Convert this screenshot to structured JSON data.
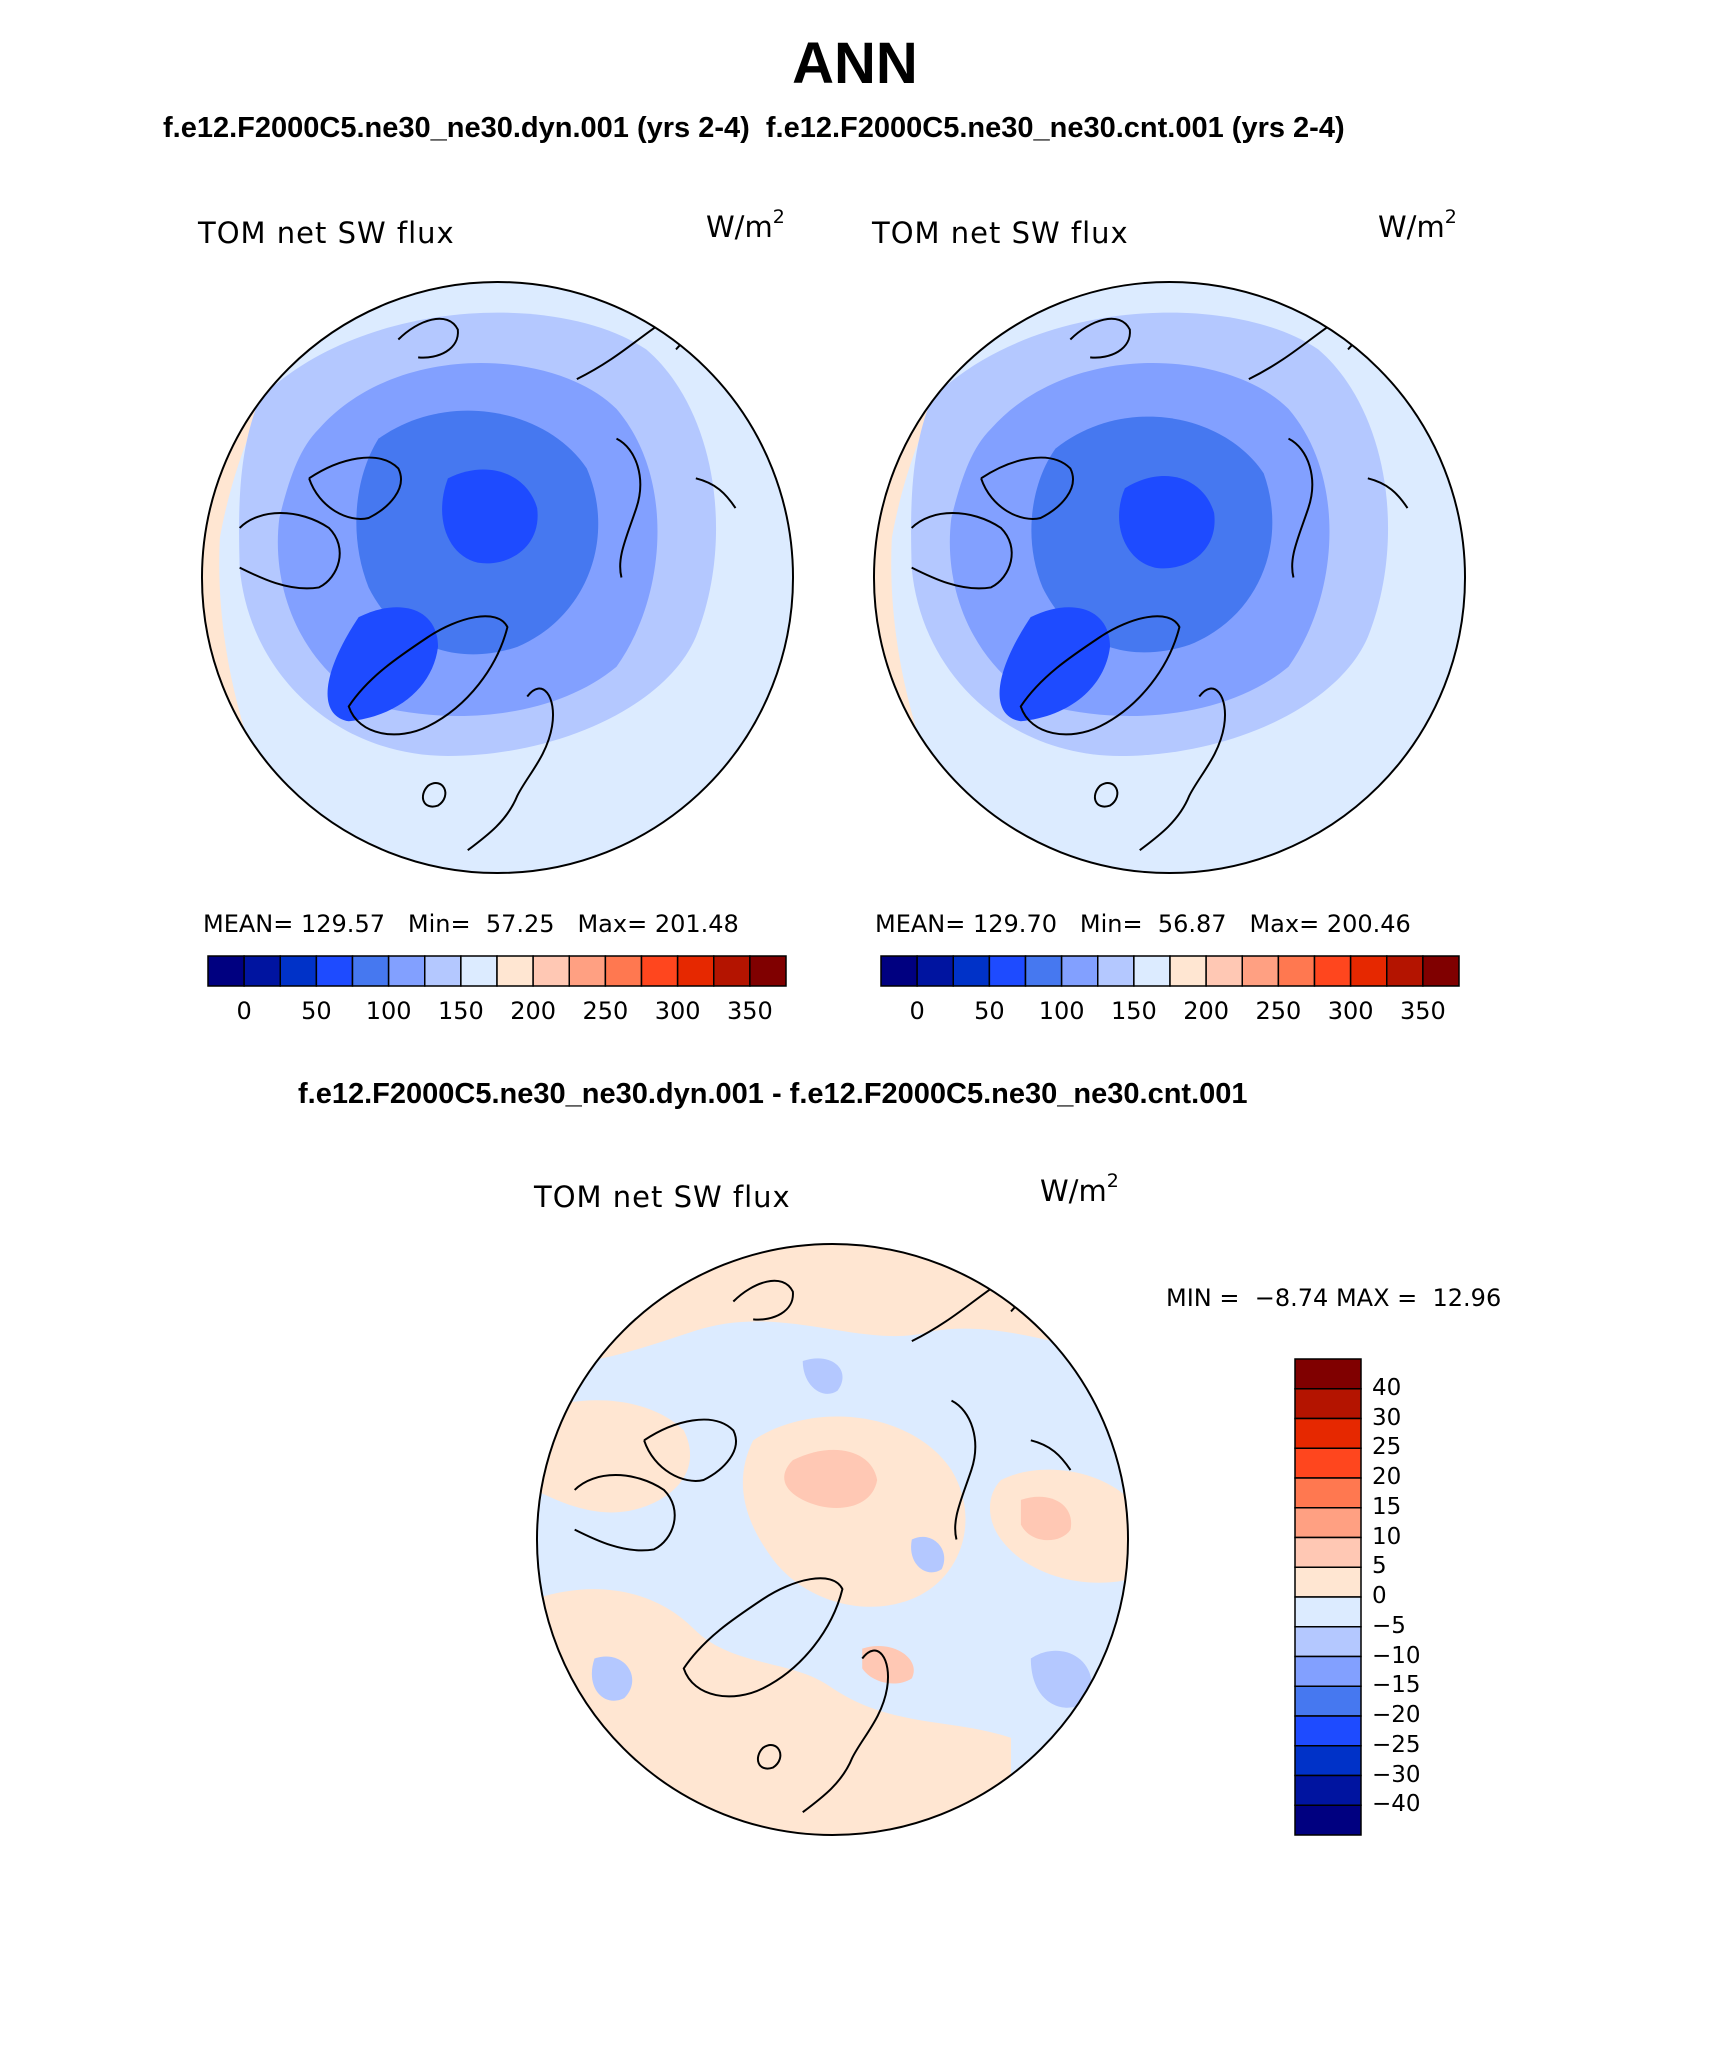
{
  "title": "ANN",
  "cases_line": "f.e12.F2000C5.ne30_ne30.dyn.001 (yrs 2-4)  f.e12.F2000C5.ne30_ne30.cnt.001 (yrs 2-4)",
  "diff_line": "f.e12.F2000C5.ne30_ne30.dyn.001 - f.e12.F2000C5.ne30_ne30.cnt.001",
  "panels": [
    {
      "label": "TOM net SW flux",
      "units_base": "W/m",
      "units_exp": "2",
      "mean_label": "MEAN=",
      "mean": "129.57",
      "min_label": "Min=",
      "min": "57.25",
      "max_label": "Max=",
      "max": "201.48"
    },
    {
      "label": "TOM net SW flux",
      "units_base": "W/m",
      "units_exp": "2",
      "mean_label": "MEAN=",
      "mean": "129.70",
      "min_label": "Min=",
      "min": "56.87",
      "max_label": "Max=",
      "max": "200.46"
    },
    {
      "label": "TOM net SW flux",
      "units_base": "W/m",
      "units_exp": "2",
      "min_label": "MIN =",
      "min": "−8.74",
      "max_label": "MAX =",
      "max": "12.96"
    }
  ],
  "abs_colorbar": {
    "colors": [
      "#000080",
      "#0014a0",
      "#0032c8",
      "#1e4bff",
      "#4678f0",
      "#82a0ff",
      "#b4c8ff",
      "#dcebff",
      "#ffe6d2",
      "#ffc8b4",
      "#ffa082",
      "#ff7850",
      "#ff461e",
      "#e62800",
      "#b41400",
      "#800000"
    ],
    "ticks": [
      "0",
      "50",
      "100",
      "150",
      "200",
      "250",
      "300",
      "350"
    ]
  },
  "diff_colorbar": {
    "colors": [
      "#800000",
      "#b41400",
      "#e62800",
      "#ff461e",
      "#ff7850",
      "#ffa082",
      "#ffc8b4",
      "#ffe6d2",
      "#dcebff",
      "#b4c8ff",
      "#82a0ff",
      "#4678f0",
      "#1e4bff",
      "#0032c8",
      "#0014a0",
      "#000080"
    ],
    "ticks": [
      "40",
      "30",
      "25",
      "20",
      "15",
      "10",
      "5",
      "0",
      "−5",
      "−10",
      "−15",
      "−20",
      "−25",
      "−30",
      "−40"
    ]
  }
}
